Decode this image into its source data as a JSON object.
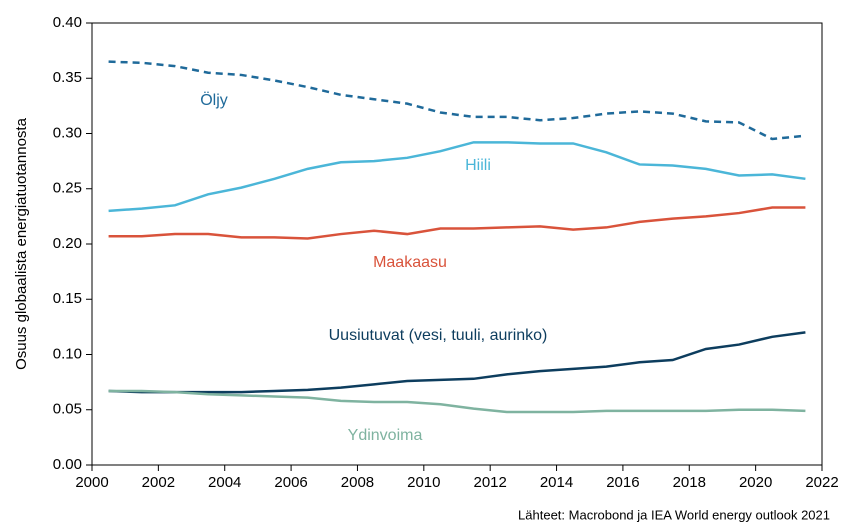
{
  "chart_data": {
    "type": "line",
    "y_label": "Osuus globaalista energiatuotannosta",
    "source": "Lähteet: Macrobond ja IEA World energy outlook 2021",
    "x": [
      2000.5,
      2001.5,
      2002.5,
      2003.5,
      2004.5,
      2005.5,
      2006.5,
      2007.5,
      2008.5,
      2009.5,
      2010.5,
      2011.5,
      2012.5,
      2013.5,
      2014.5,
      2015.5,
      2016.5,
      2017.5,
      2018.5,
      2019.5,
      2020.5,
      2021.5
    ],
    "series": [
      {
        "name": "Öljy",
        "color": "#1f6a9a",
        "dashed": true,
        "values": [
          0.365,
          0.364,
          0.361,
          0.355,
          0.353,
          0.348,
          0.342,
          0.335,
          0.331,
          0.327,
          0.319,
          0.315,
          0.315,
          0.312,
          0.314,
          0.318,
          0.32,
          0.318,
          0.311,
          0.31,
          0.295,
          0.298
        ]
      },
      {
        "name": "Hiili",
        "color": "#4bb6d8",
        "dashed": false,
        "values": [
          0.23,
          0.232,
          0.235,
          0.245,
          0.251,
          0.259,
          0.268,
          0.274,
          0.275,
          0.278,
          0.284,
          0.292,
          0.292,
          0.291,
          0.291,
          0.283,
          0.272,
          0.271,
          0.268,
          0.262,
          0.263,
          0.259
        ]
      },
      {
        "name": "Maakaasu",
        "color": "#d9533b",
        "dashed": false,
        "values": [
          0.207,
          0.207,
          0.209,
          0.209,
          0.206,
          0.206,
          0.205,
          0.209,
          0.212,
          0.209,
          0.214,
          0.214,
          0.215,
          0.216,
          0.213,
          0.215,
          0.22,
          0.223,
          0.225,
          0.228,
          0.233,
          0.233
        ]
      },
      {
        "name": "Uusiutuvat (vesi, tuuli, aurinko)",
        "color": "#0d3d5e",
        "dashed": false,
        "values": [
          0.067,
          0.066,
          0.066,
          0.066,
          0.066,
          0.067,
          0.068,
          0.07,
          0.073,
          0.076,
          0.077,
          0.078,
          0.082,
          0.085,
          0.087,
          0.089,
          0.093,
          0.095,
          0.105,
          0.109,
          0.116,
          0.12
        ]
      },
      {
        "name": "Ydinvoima",
        "color": "#7fb3a0",
        "dashed": false,
        "values": [
          0.067,
          0.067,
          0.066,
          0.064,
          0.063,
          0.062,
          0.061,
          0.058,
          0.057,
          0.057,
          0.055,
          0.051,
          0.048,
          0.048,
          0.048,
          0.049,
          0.049,
          0.049,
          0.049,
          0.05,
          0.05,
          0.049
        ]
      }
    ],
    "xlim": [
      2000,
      2022
    ],
    "xticks": [
      2000,
      2002,
      2004,
      2006,
      2008,
      2010,
      2012,
      2014,
      2016,
      2018,
      2020,
      2022
    ],
    "ylim": [
      0,
      0.4
    ],
    "yticks": [
      {
        "value": 0,
        "label": "0.00"
      },
      0.05,
      {
        "value": 0.1,
        "label": "0.10"
      },
      0.15,
      {
        "value": 0.2,
        "label": "0.20"
      },
      0.25,
      {
        "value": 0.3,
        "label": "0.30"
      },
      0.35,
      {
        "value": 0.4,
        "label": "0.40"
      }
    ],
    "grid": false
  }
}
